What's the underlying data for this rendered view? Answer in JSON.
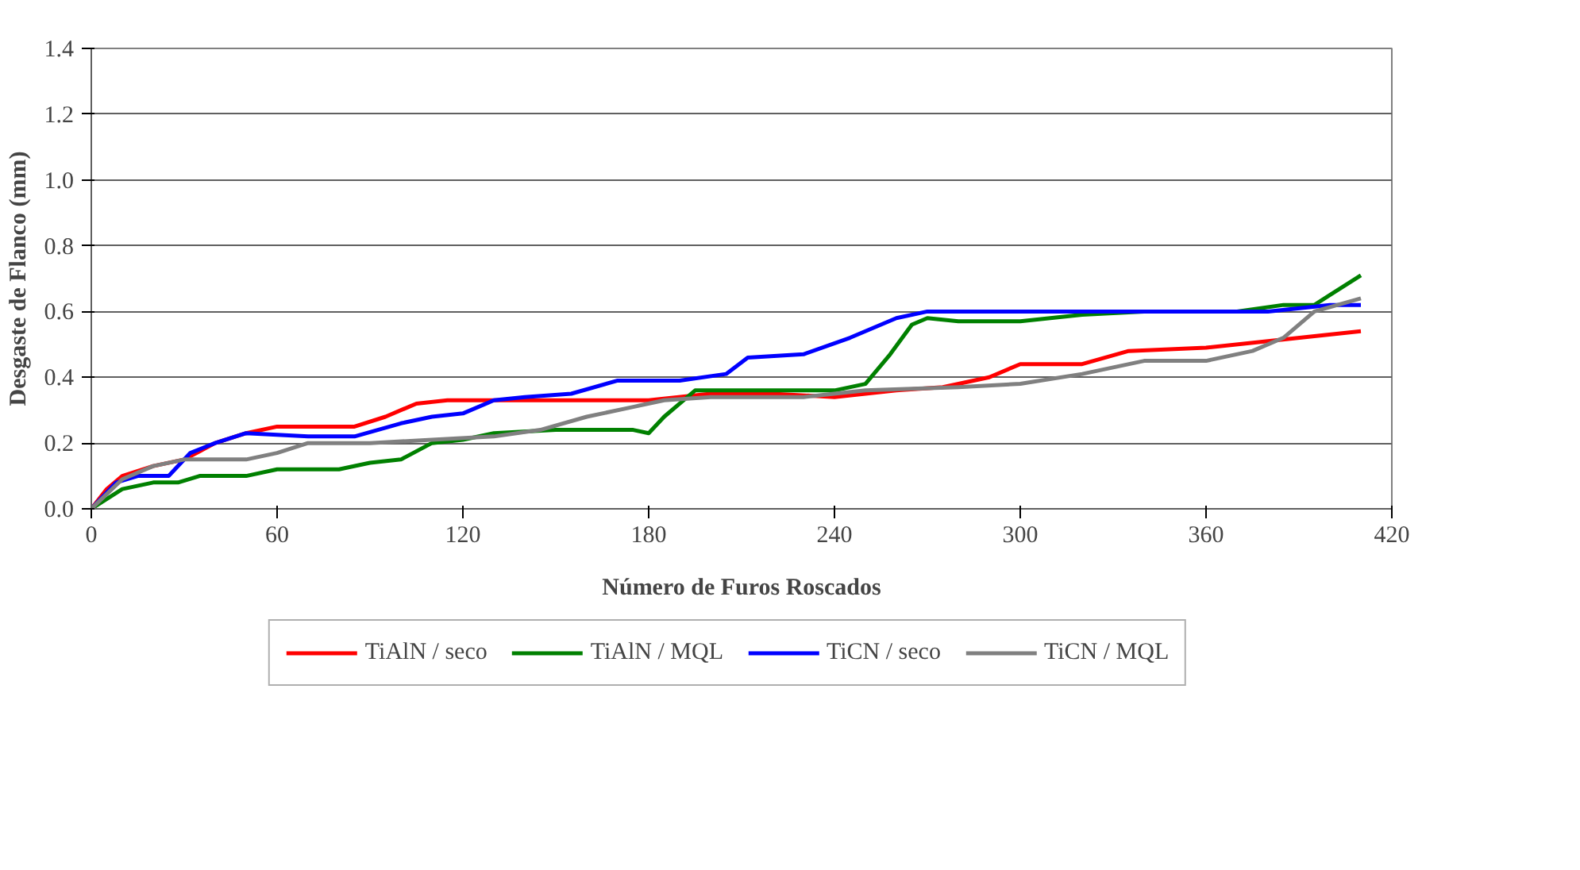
{
  "chart_data": {
    "type": "line",
    "xlabel": "Número de Furos Roscados",
    "ylabel": "Desgaste de Flanco (mm)",
    "xlim": [
      0,
      420
    ],
    "xticks": [
      0,
      60,
      120,
      180,
      240,
      300,
      360,
      420
    ],
    "ylim": [
      0,
      1.4
    ],
    "yticks": [
      {
        "value": 0,
        "label": "0.0"
      },
      0.2,
      0.4,
      0.6,
      0.8,
      {
        "value": 1,
        "label": "1.0"
      },
      1.2,
      1.4
    ],
    "grid": "y",
    "legend": "bottom",
    "line_style": "solid",
    "marker": "none",
    "series": [
      {
        "name": "TiAlN / seco",
        "color": "#ff0000",
        "x": [
          0,
          5,
          10,
          20,
          30,
          40,
          50,
          60,
          70,
          85,
          95,
          105,
          115,
          140,
          160,
          180,
          200,
          220,
          240,
          260,
          275,
          290,
          300,
          320,
          335,
          360,
          380,
          410
        ],
        "values": [
          0,
          0.06,
          0.1,
          0.13,
          0.15,
          0.2,
          0.23,
          0.25,
          0.25,
          0.25,
          0.28,
          0.32,
          0.33,
          0.33,
          0.33,
          0.33,
          0.35,
          0.35,
          0.34,
          0.36,
          0.37,
          0.4,
          0.44,
          0.44,
          0.48,
          0.49,
          0.51,
          0.54
        ]
      },
      {
        "name": "TiAlN / MQL",
        "color": "#008000",
        "x": [
          0,
          10,
          20,
          28,
          35,
          50,
          60,
          80,
          90,
          100,
          110,
          120,
          130,
          150,
          175,
          180,
          185,
          195,
          210,
          240,
          250,
          258,
          265,
          270,
          280,
          300,
          320,
          340,
          370,
          385,
          395,
          400,
          410
        ],
        "values": [
          0,
          0.06,
          0.08,
          0.08,
          0.1,
          0.1,
          0.12,
          0.12,
          0.14,
          0.15,
          0.2,
          0.21,
          0.23,
          0.24,
          0.24,
          0.23,
          0.28,
          0.36,
          0.36,
          0.36,
          0.38,
          0.47,
          0.56,
          0.58,
          0.57,
          0.57,
          0.59,
          0.6,
          0.6,
          0.62,
          0.62,
          0.65,
          0.71
        ]
      },
      {
        "name": "TiCN / seco",
        "color": "#0000ff",
        "x": [
          0,
          8,
          15,
          25,
          32,
          40,
          50,
          70,
          85,
          100,
          110,
          120,
          130,
          140,
          155,
          170,
          190,
          205,
          212,
          230,
          245,
          260,
          270,
          300,
          360,
          380,
          400,
          410
        ],
        "values": [
          0,
          0.08,
          0.1,
          0.1,
          0.17,
          0.2,
          0.23,
          0.22,
          0.22,
          0.26,
          0.28,
          0.29,
          0.33,
          0.34,
          0.35,
          0.39,
          0.39,
          0.41,
          0.46,
          0.47,
          0.52,
          0.58,
          0.6,
          0.6,
          0.6,
          0.6,
          0.62,
          0.62
        ]
      },
      {
        "name": "TiCN / MQL",
        "color": "#808080",
        "x": [
          0,
          10,
          20,
          30,
          50,
          60,
          70,
          90,
          110,
          130,
          145,
          160,
          175,
          185,
          200,
          230,
          250,
          280,
          300,
          320,
          340,
          360,
          375,
          385,
          395,
          410
        ],
        "values": [
          0,
          0.09,
          0.13,
          0.15,
          0.15,
          0.17,
          0.2,
          0.2,
          0.21,
          0.22,
          0.24,
          0.28,
          0.31,
          0.33,
          0.34,
          0.34,
          0.36,
          0.37,
          0.38,
          0.41,
          0.45,
          0.45,
          0.48,
          0.52,
          0.6,
          0.64
        ]
      }
    ]
  }
}
